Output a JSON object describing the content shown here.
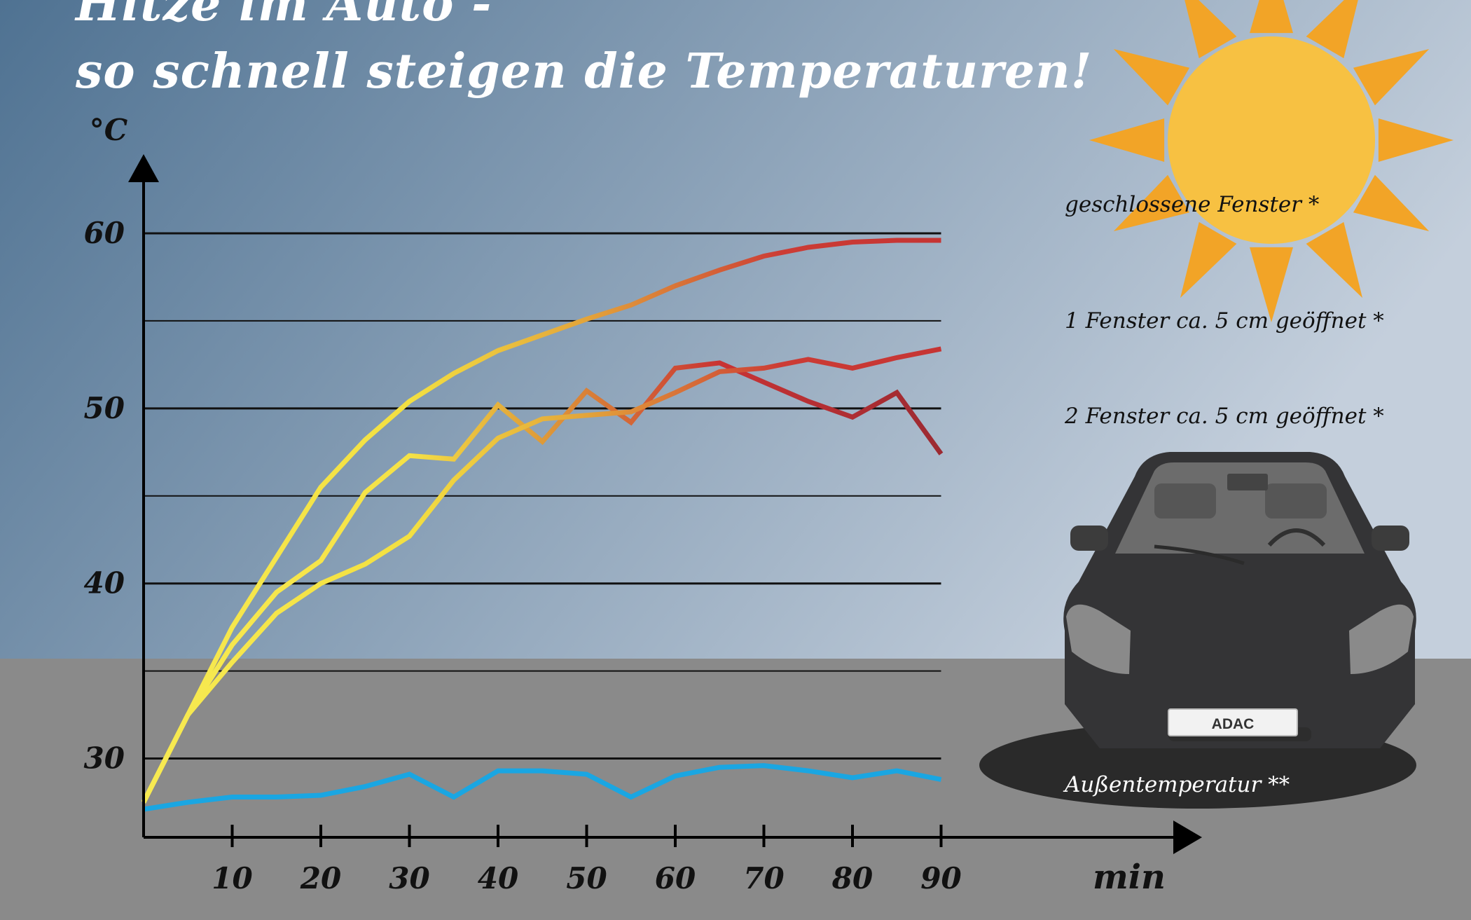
{
  "title_line1": "Hitze im Auto -",
  "title_line2": "so schnell steigen die Temperaturen!",
  "colors": {
    "sky_dark": "#4f7292",
    "sky_light": "#c4cfdc",
    "ground": "#8a8a8a",
    "sun": "#f7c142",
    "sun_rays": "#f2a427",
    "outside_line": "#1aa6e2",
    "curve_start": "#f7ea52",
    "curve_mid": "#de9a38",
    "curve_end": "#c93334",
    "curve_dark": "#8a2630",
    "car_body": "#343436"
  },
  "icons": {
    "sun": "sun-icon",
    "car": "car-icon"
  },
  "car_plate": "ADAC",
  "chart_data": {
    "type": "line",
    "title": "Hitze im Auto - so schnell steigen die Temperaturen!",
    "ylabel": "°C",
    "xlabel": "min",
    "ylim": [
      25.5,
      62
    ],
    "xlim": [
      0,
      100
    ],
    "y_ticks": [
      30,
      40,
      50,
      60
    ],
    "y_tick_labels": [
      "30",
      "40",
      "50",
      "60"
    ],
    "gridlines": [
      30,
      35,
      40,
      45,
      50,
      55,
      60
    ],
    "x_ticks": [
      10,
      20,
      30,
      40,
      50,
      60,
      70,
      80,
      90
    ],
    "x_tick_labels": [
      "10",
      "20",
      "30",
      "40",
      "50",
      "60",
      "70",
      "80",
      "90"
    ],
    "grid": true,
    "series": [
      {
        "name": "geschlossene Fenster *",
        "x": [
          0,
          5,
          10,
          15,
          20,
          25,
          30,
          35,
          40,
          45,
          50,
          55,
          60,
          65,
          70,
          75,
          80,
          85,
          90
        ],
        "values": [
          27.5,
          32.5,
          37.5,
          41.5,
          45.5,
          48.2,
          50.4,
          52.0,
          53.3,
          54.2,
          55.1,
          55.9,
          57.0,
          57.9,
          58.7,
          59.2,
          59.5,
          59.6,
          59.6
        ]
      },
      {
        "name": "1 Fenster ca. 5 cm geöffnet *",
        "x": [
          0,
          5,
          10,
          15,
          20,
          25,
          30,
          35,
          40,
          45,
          50,
          55,
          60,
          65,
          70,
          75,
          80,
          85,
          90
        ],
        "values": [
          27.5,
          32.5,
          36.5,
          39.5,
          41.3,
          45.2,
          47.3,
          47.1,
          50.2,
          48.1,
          51.0,
          49.2,
          52.3,
          52.6,
          51.5,
          50.4,
          49.5,
          50.9,
          47.4
        ]
      },
      {
        "name": "2 Fenster ca. 5 cm geöffnet *",
        "x": [
          0,
          5,
          10,
          15,
          20,
          25,
          30,
          35,
          40,
          45,
          50,
          55,
          60,
          65,
          70,
          75,
          80,
          85,
          90
        ],
        "values": [
          27.5,
          32.5,
          35.5,
          38.3,
          40.0,
          41.1,
          42.7,
          45.9,
          48.3,
          49.4,
          49.6,
          49.8,
          50.9,
          52.1,
          52.3,
          52.8,
          52.3,
          52.9,
          53.4
        ]
      },
      {
        "name": "Außentemperatur **",
        "x": [
          0,
          5,
          10,
          15,
          20,
          25,
          30,
          35,
          40,
          45,
          50,
          55,
          60,
          65,
          70,
          75,
          80,
          85,
          90
        ],
        "values": [
          27.1,
          27.5,
          27.8,
          27.8,
          27.9,
          28.4,
          29.1,
          27.8,
          29.3,
          29.3,
          29.1,
          27.8,
          29.0,
          29.5,
          29.6,
          29.3,
          28.9,
          29.3,
          28.8
        ]
      }
    ]
  }
}
